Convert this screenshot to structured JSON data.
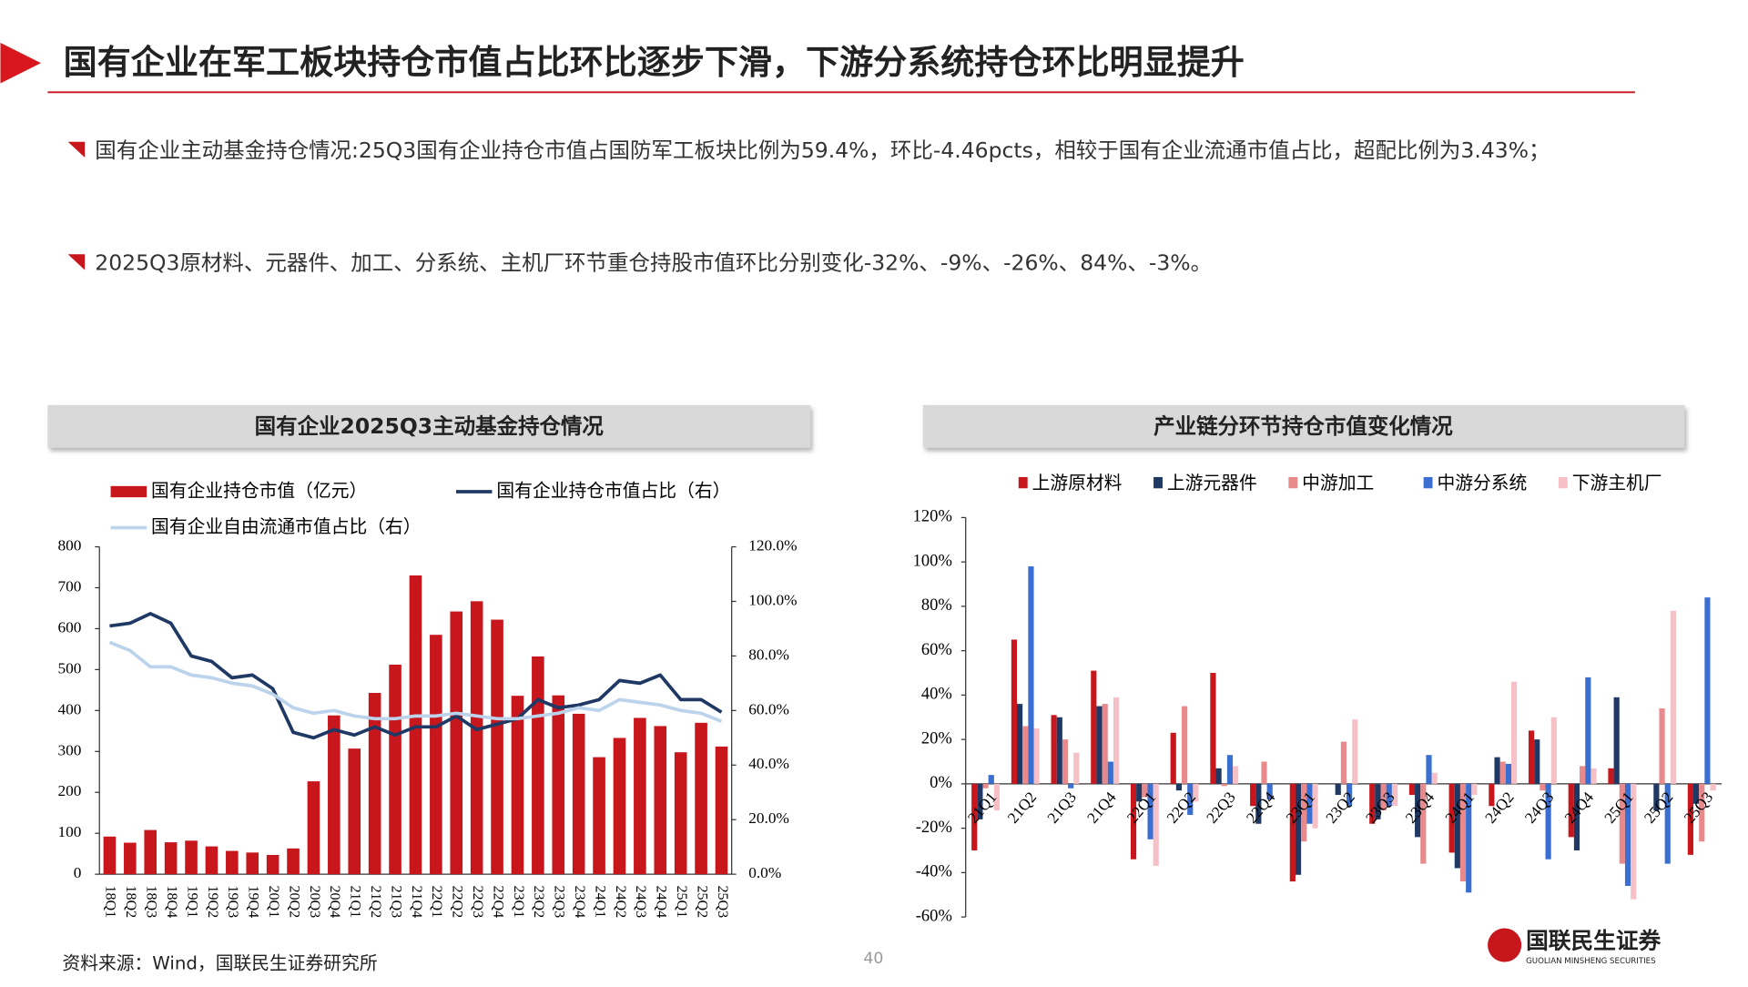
{
  "header": {
    "title": "国有企业在军工板块持仓市值占比环比逐步下滑，下游分系统持仓环比明显提升"
  },
  "bullets": [
    "国有企业主动基金持仓情况:25Q3国有企业持仓市值占国防军工板块比例为59.4%，环比-4.46pcts，相较于国有企业流通市值占比，超配比例为3.43%；",
    "2025Q3原材料、元器件、加工、分系统、主机厂环节重仓持股市值环比分别变化-32%、-9%、-26%、84%、-3%。"
  ],
  "chart_data": [
    {
      "type": "combo",
      "title": "国有企业2025Q3主动基金持仓情况",
      "categories": [
        "18Q1",
        "18Q2",
        "18Q3",
        "18Q4",
        "19Q1",
        "19Q2",
        "19Q3",
        "19Q4",
        "20Q1",
        "20Q2",
        "20Q3",
        "20Q4",
        "21Q1",
        "21Q2",
        "21Q3",
        "21Q4",
        "22Q1",
        "22Q2",
        "22Q3",
        "22Q4",
        "23Q1",
        "23Q2",
        "23Q3",
        "23Q4",
        "24Q1",
        "24Q2",
        "24Q3",
        "24Q4",
        "25Q1",
        "25Q2",
        "25Q3"
      ],
      "series": [
        {
          "name": "国有企业持仓市值（亿元）",
          "type": "bar",
          "color": "#c8161d",
          "values": [
            92,
            77,
            108,
            78,
            82,
            68,
            57,
            53,
            47,
            63,
            227,
            388,
            307,
            443,
            512,
            730,
            585,
            642,
            667,
            622,
            436,
            532,
            437,
            392,
            286,
            333,
            382,
            362,
            298,
            370,
            312
          ]
        },
        {
          "name": "国有企业持仓市值占比（右）",
          "type": "line",
          "axis": "y2",
          "color": "#1f3864",
          "values": [
            91,
            92,
            95.5,
            92,
            80,
            78,
            72,
            73,
            68,
            52,
            50,
            53,
            51,
            54,
            51,
            54,
            54,
            58,
            53,
            55,
            57,
            64,
            61,
            62,
            64,
            71,
            70,
            73,
            64,
            64,
            59.4
          ]
        },
        {
          "name": "国有企业自由流通市值占比（右）",
          "type": "line",
          "axis": "y2",
          "color": "#bcd3ec",
          "values": [
            85,
            82,
            76,
            76,
            73,
            72,
            70,
            69,
            66,
            61,
            59,
            60,
            58,
            57,
            57,
            58,
            58,
            59,
            58,
            57,
            57,
            58,
            59,
            61,
            60,
            64,
            63,
            62,
            60,
            59,
            56
          ]
        }
      ],
      "ylim": [
        0,
        800
      ],
      "yticks": [
        0,
        100,
        200,
        300,
        400,
        500,
        600,
        700,
        800
      ],
      "y2lim": [
        0,
        120
      ],
      "y2ticks": [
        {
          "value": 0,
          "label": "0.0%"
        },
        {
          "value": 20,
          "label": "20.0%"
        },
        {
          "value": 40,
          "label": "40.0%"
        },
        {
          "value": 60,
          "label": "60.0%"
        },
        {
          "value": 80,
          "label": "80.0%"
        },
        {
          "value": 100,
          "label": "100.0%"
        },
        {
          "value": 120,
          "label": "120.0%"
        }
      ],
      "grid": false
    },
    {
      "type": "bar",
      "title": "产业链分环节持仓市值变化情况",
      "categories": [
        "21Q1",
        "21Q2",
        "21Q3",
        "21Q4",
        "22Q1",
        "22Q2",
        "22Q3",
        "22Q4",
        "23Q1",
        "23Q2",
        "23Q3",
        "23Q4",
        "24Q1",
        "24Q2",
        "24Q3",
        "24Q4",
        "25Q1",
        "25Q2",
        "25Q3"
      ],
      "series": [
        {
          "name": "上游原材料",
          "color": "#c8161d",
          "values": [
            -30,
            65,
            31,
            51,
            -34,
            23,
            50,
            -10,
            -44,
            0,
            -18,
            -5,
            -31,
            -10,
            24,
            -24,
            7,
            0,
            -32
          ]
        },
        {
          "name": "上游元器件",
          "color": "#1f3864",
          "values": [
            -16,
            36,
            30,
            35,
            -8,
            -3,
            7,
            -18,
            -41,
            -5,
            -16,
            -24,
            -38,
            12,
            20,
            -30,
            39,
            -12,
            -9
          ]
        },
        {
          "name": "中游加工",
          "color": "#e8898c",
          "values": [
            -2,
            26,
            20,
            36,
            -6,
            35,
            -1,
            10,
            -26,
            19,
            -12,
            -36,
            -44,
            10,
            -3,
            8,
            -36,
            34,
            -26
          ]
        },
        {
          "name": "中游分系统",
          "color": "#3a6fd1",
          "values": [
            4,
            98,
            -2,
            10,
            -25,
            -14,
            13,
            -7,
            -18,
            -10,
            -10,
            13,
            -49,
            9,
            -34,
            48,
            -46,
            -36,
            84
          ]
        },
        {
          "name": "下游主机厂",
          "color": "#f6c1c6",
          "values": [
            -12,
            25,
            14,
            39,
            -37,
            -8,
            8,
            0,
            -20,
            29,
            -10,
            5,
            -5,
            46,
            30,
            7,
            -52,
            78,
            -3
          ]
        }
      ],
      "ylim": [
        -60,
        120
      ],
      "yticks": [
        {
          "value": -60,
          "label": "-60%"
        },
        {
          "value": -40,
          "label": "-40%"
        },
        {
          "value": -20,
          "label": "-20%"
        },
        {
          "value": 0,
          "label": "0%"
        },
        {
          "value": 20,
          "label": "20%"
        },
        {
          "value": 40,
          "label": "40%"
        },
        {
          "value": 60,
          "label": "60%"
        },
        {
          "value": 80,
          "label": "80%"
        },
        {
          "value": 100,
          "label": "100%"
        },
        {
          "value": 120,
          "label": "120%"
        }
      ],
      "grid": false
    }
  ],
  "footer": {
    "source": "资料来源：Wind，国联民生证券研究所",
    "page": "40",
    "logo": "国联民生证券",
    "logo_en": "GUOLIAN MINSHENG SECURITIES"
  }
}
